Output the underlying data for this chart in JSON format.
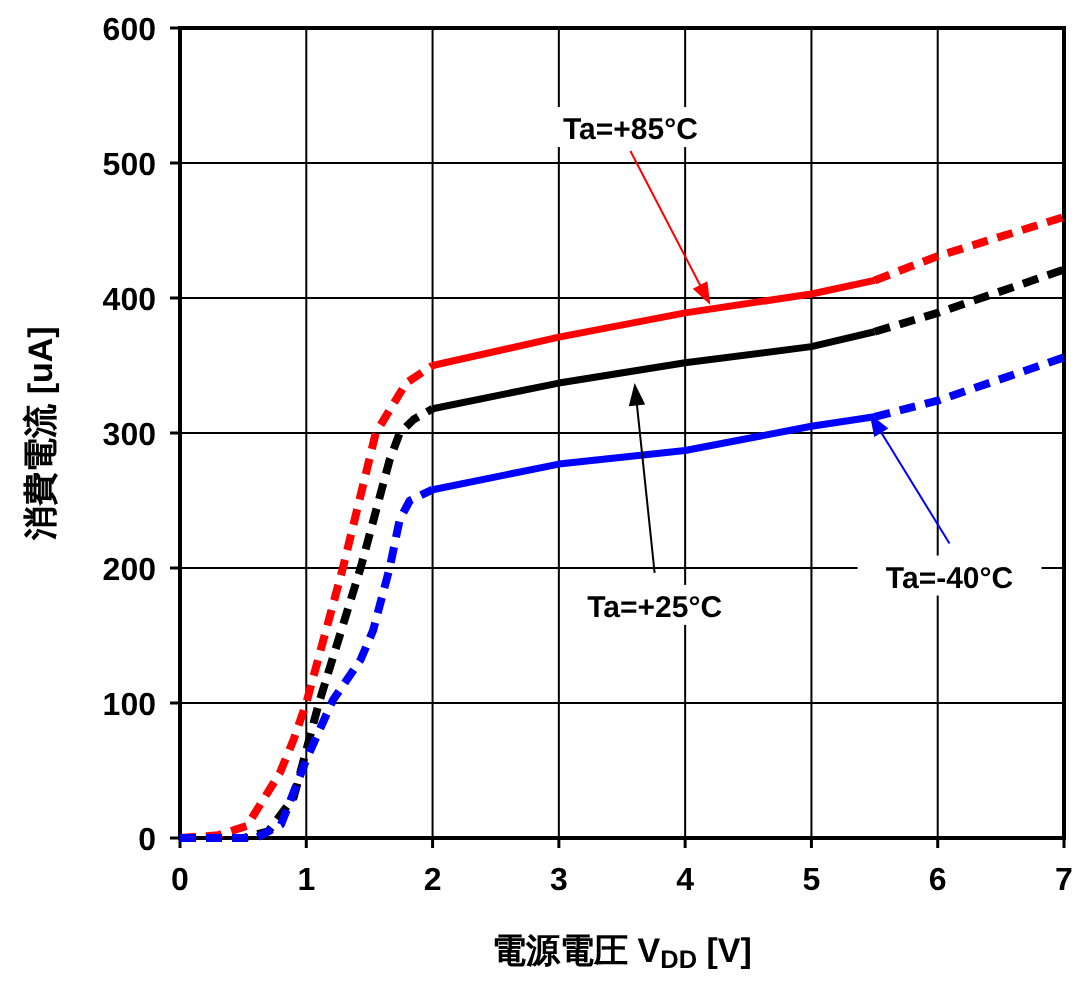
{
  "chart_data": {
    "type": "line",
    "xlabel": "電源電圧 V$_{DD}$ [V]",
    "ylabel": "消費電流 [uA]",
    "xlim": [
      0,
      7
    ],
    "ylim": [
      0,
      600
    ],
    "xticks": [
      0,
      1,
      2,
      3,
      4,
      5,
      6,
      7
    ],
    "yticks": [
      0,
      100,
      200,
      300,
      400,
      500,
      600
    ],
    "grid": true,
    "marker": "none",
    "series": [
      {
        "color": "#ff0000",
        "line_style": "dashed",
        "x": [
          0,
          0.3,
          0.53,
          0.79,
          0.9,
          1.0,
          1.29,
          1.55,
          1.79,
          2.0
        ],
        "values": [
          0,
          2,
          9,
          48,
          73,
          100,
          200,
          300,
          337,
          350
        ]
      },
      {
        "color": "#ff0000",
        "line_style": "solid",
        "x": [
          2.0,
          3.0,
          4.0,
          5.0,
          5.5
        ],
        "values": [
          350,
          371,
          389,
          403,
          413
        ]
      },
      {
        "color": "#ff0000",
        "line_style": "dashed",
        "x": [
          5.5,
          6.0,
          7.0
        ],
        "values": [
          413,
          431,
          460
        ]
      },
      {
        "color": "#000000",
        "line_style": "dashed",
        "x": [
          0,
          0.5,
          0.7,
          0.9,
          1.1,
          1.43,
          1.66,
          1.74,
          1.85,
          2.0
        ],
        "values": [
          0,
          0,
          5,
          30,
          100,
          200,
          280,
          300,
          310,
          318
        ]
      },
      {
        "color": "#000000",
        "line_style": "solid",
        "x": [
          2.0,
          3.0,
          4.0,
          5.0,
          5.5
        ],
        "values": [
          318,
          337,
          352,
          364,
          375
        ]
      },
      {
        "color": "#000000",
        "line_style": "dashed",
        "x": [
          5.5,
          6.0,
          7.0
        ],
        "values": [
          375,
          389,
          421
        ]
      },
      {
        "color": "#0000ff",
        "line_style": "dashed",
        "x": [
          0,
          0.6,
          0.8,
          1.0,
          1.21,
          1.43,
          1.53,
          1.66,
          1.74,
          1.82,
          2.0
        ],
        "values": [
          0,
          0,
          10,
          58,
          102,
          132,
          154,
          200,
          236,
          250,
          258
        ]
      },
      {
        "color": "#0000ff",
        "line_style": "solid",
        "x": [
          2.0,
          3.0,
          4.0,
          5.0,
          5.5
        ],
        "values": [
          258,
          277,
          287,
          305,
          312
        ]
      },
      {
        "color": "#0000ff",
        "line_style": "dashed",
        "x": [
          5.5,
          6.0,
          7.0
        ],
        "values": [
          312,
          324,
          356
        ]
      }
    ],
    "annotations": [
      "Ta=+85°C",
      "Ta=+25°C",
      "Ta=-40°C"
    ]
  }
}
